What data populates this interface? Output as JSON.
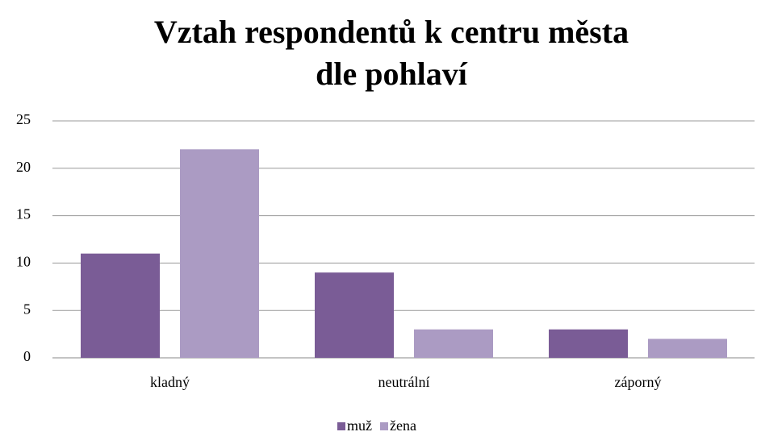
{
  "chart_data": {
    "type": "bar",
    "title": [
      "Vztah respondentů k centru města",
      "dle pohlaví"
    ],
    "categories": [
      "kladný",
      "neutrální",
      "záporný"
    ],
    "series": [
      {
        "name": "muž",
        "color": "#7a5c96",
        "values": [
          11,
          9,
          3
        ]
      },
      {
        "name": "žena",
        "color": "#ab9bc3",
        "values": [
          22,
          3,
          2
        ]
      }
    ],
    "ylim": [
      0,
      25
    ],
    "yticks": [
      0,
      5,
      10,
      15,
      20,
      25
    ],
    "grid": true,
    "legend": "bottom"
  }
}
